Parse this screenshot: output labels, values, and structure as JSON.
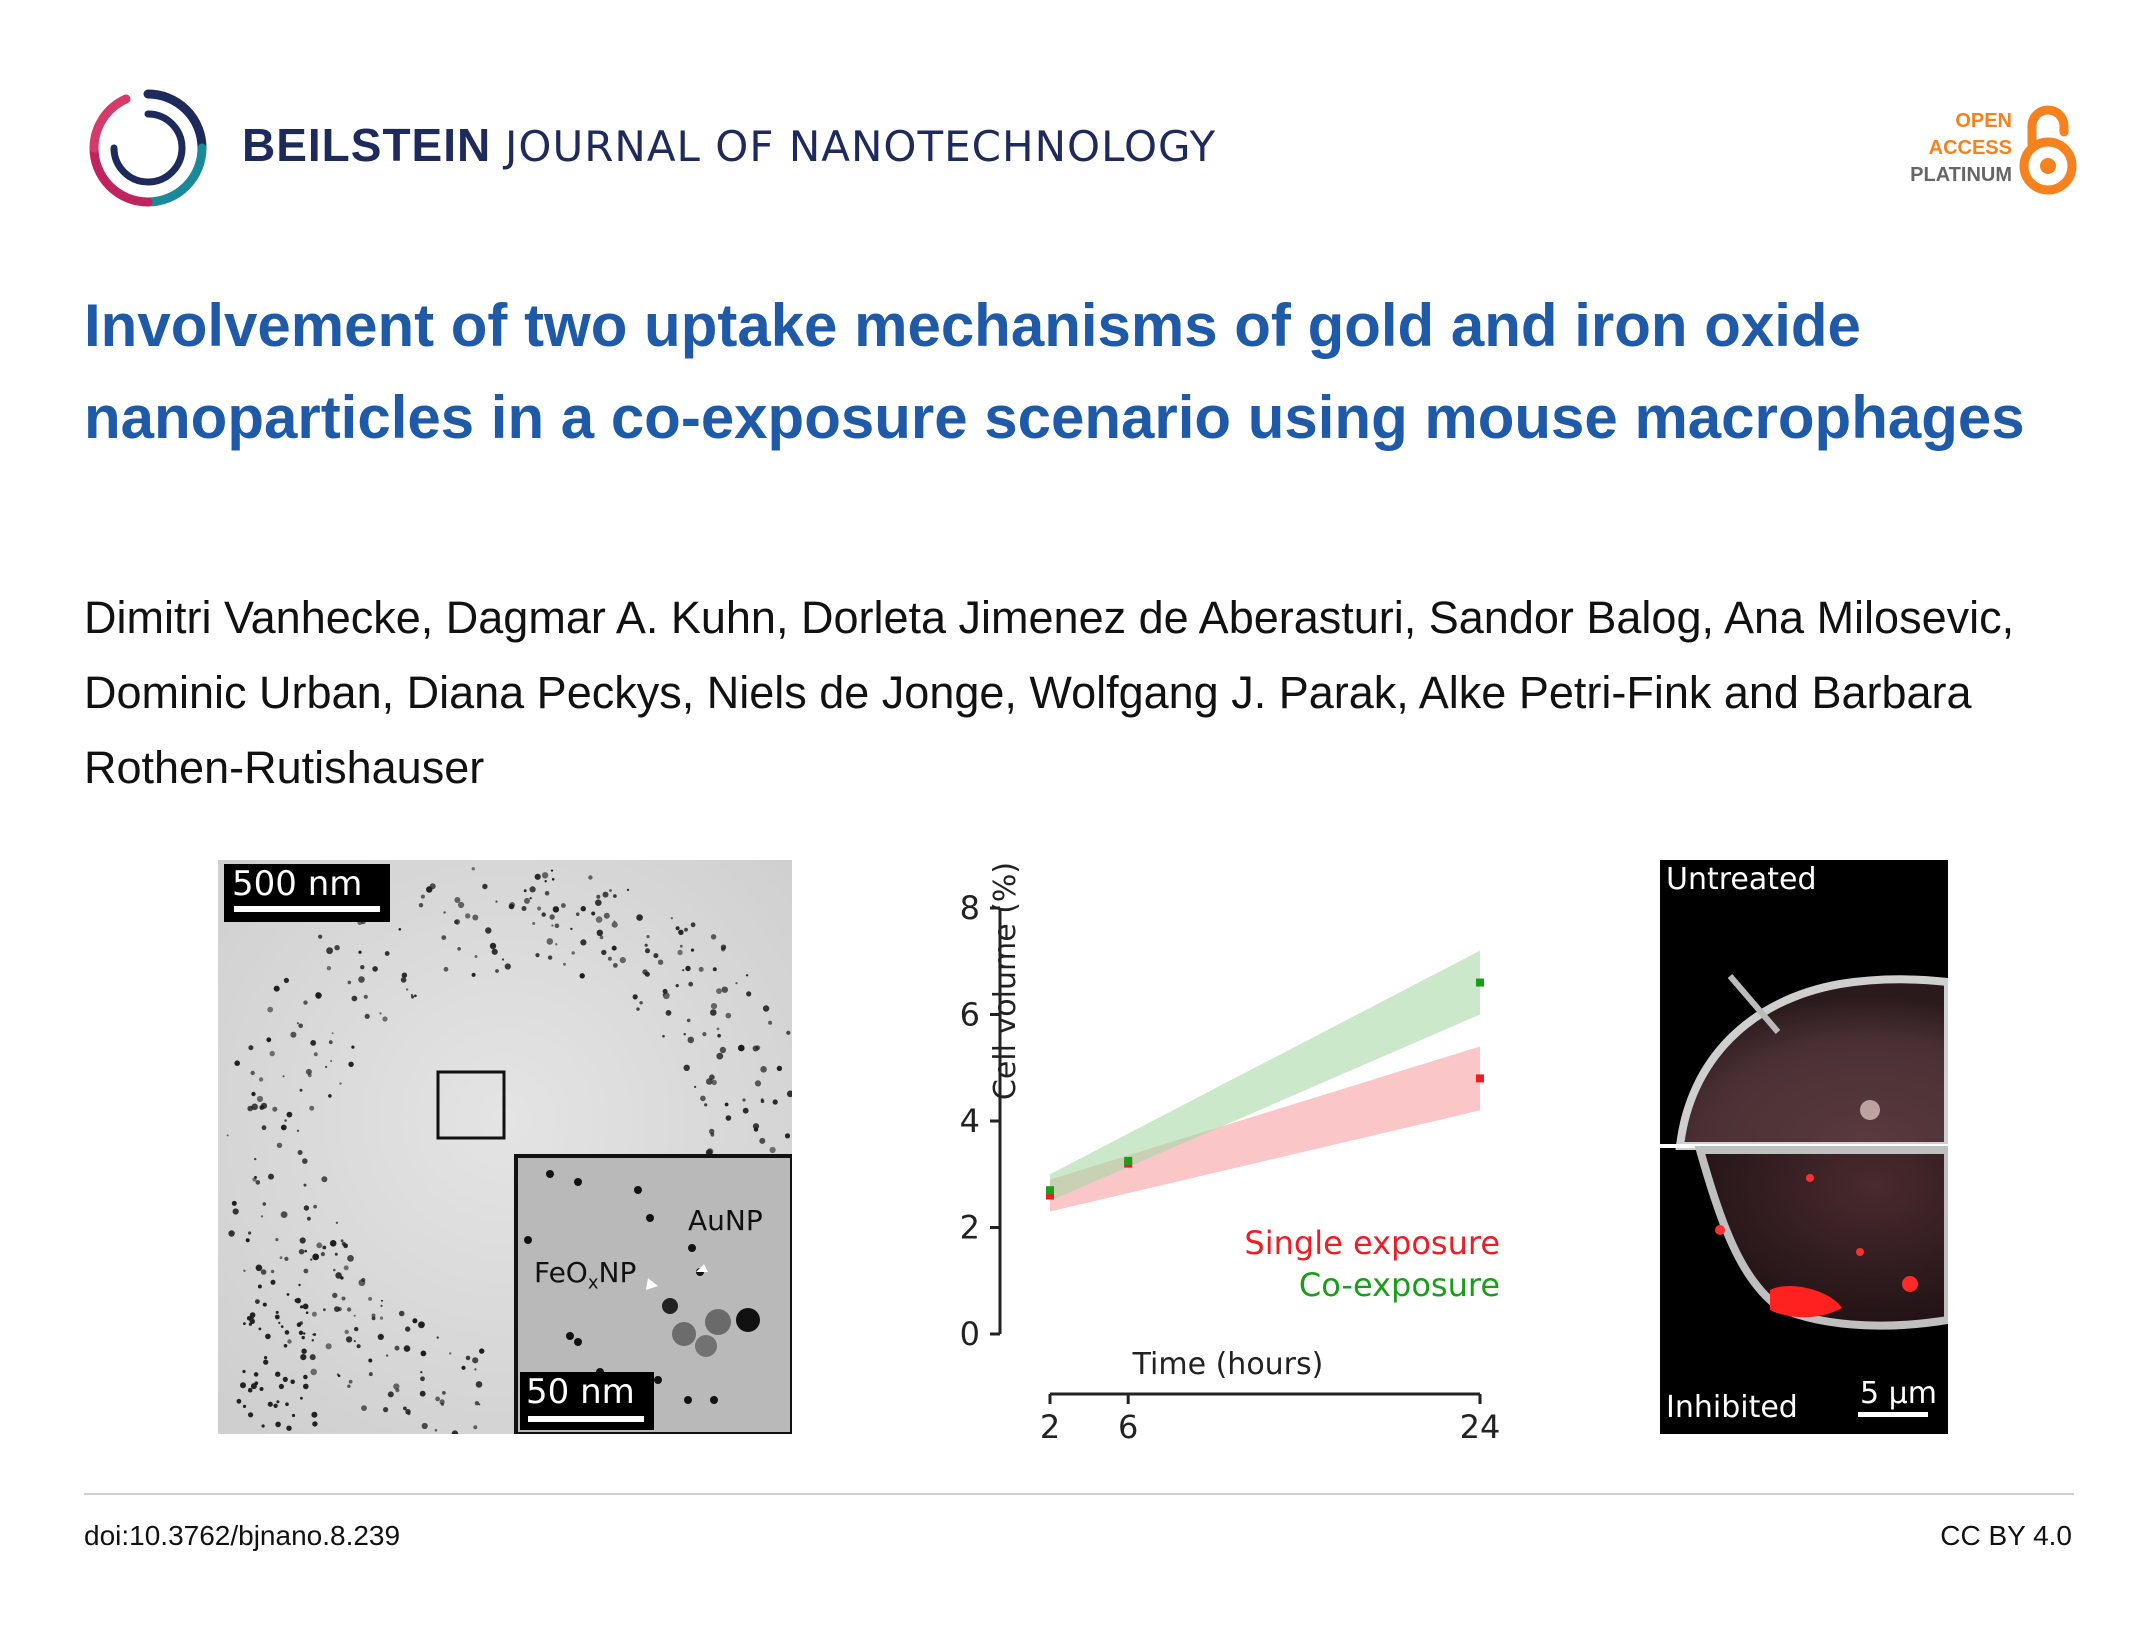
{
  "header": {
    "journal_bold": "BEILSTEIN",
    "journal_rest": "JOURNAL OF NANOTECHNOLOGY",
    "oa_line1": "OPEN",
    "oa_line2": "ACCESS",
    "oa_line3": "PLATINUM"
  },
  "article": {
    "title": "Involvement of two uptake mechanisms of gold and iron oxide nanoparticles in a co-exposure scenario using mouse macrophages",
    "authors": "Dimitri Vanhecke, Dagmar A. Kuhn, Dorleta Jimenez de Aberasturi, Sandor Balog, Ana Milosevic, Dominic Urban, Diana Peckys, Niels de Jonge, Wolfgang J. Parak, Alke Petri-Fink and Barbara Rothen-Rutishauser"
  },
  "tem": {
    "scale_main": "500 nm",
    "scale_inset": "50 nm",
    "label_au": "AuNP",
    "label_feo_pre": "FeO",
    "label_feo_sub": "x",
    "label_feo_post": "NP"
  },
  "fluor": {
    "label_top": "Untreated",
    "label_bottom": "Inhibited",
    "scale": "5 µm"
  },
  "chart_data": {
    "type": "line",
    "ylabel": "Cell volume (%)",
    "xlabel": "Time (hours)",
    "ylim": [
      0,
      8
    ],
    "yticks": [
      0,
      2,
      4,
      6,
      8
    ],
    "xlim": [
      2,
      24
    ],
    "xticks": [
      2,
      6,
      24
    ],
    "series": [
      {
        "name": "Single exposure",
        "color": "#ee1c25",
        "band_color": "#f8b3b6",
        "x": [
          2,
          6,
          24
        ],
        "y": [
          2.6,
          3.2,
          4.8
        ],
        "band_x": [
          2,
          24
        ],
        "band_lower": [
          2.3,
          4.2
        ],
        "band_upper": [
          2.9,
          5.4
        ]
      },
      {
        "name": "Co-exposure",
        "color": "#1a9e1a",
        "band_color": "#a9d8a6",
        "x": [
          2,
          6,
          24
        ],
        "y": [
          2.7,
          3.25,
          6.6
        ],
        "band_x": [
          2,
          24
        ],
        "band_lower": [
          2.5,
          6.0
        ],
        "band_upper": [
          3.0,
          7.2
        ]
      }
    ]
  },
  "footer": {
    "doi": "doi:10.3762/bjnano.8.239",
    "license": "CC BY 4.0"
  }
}
